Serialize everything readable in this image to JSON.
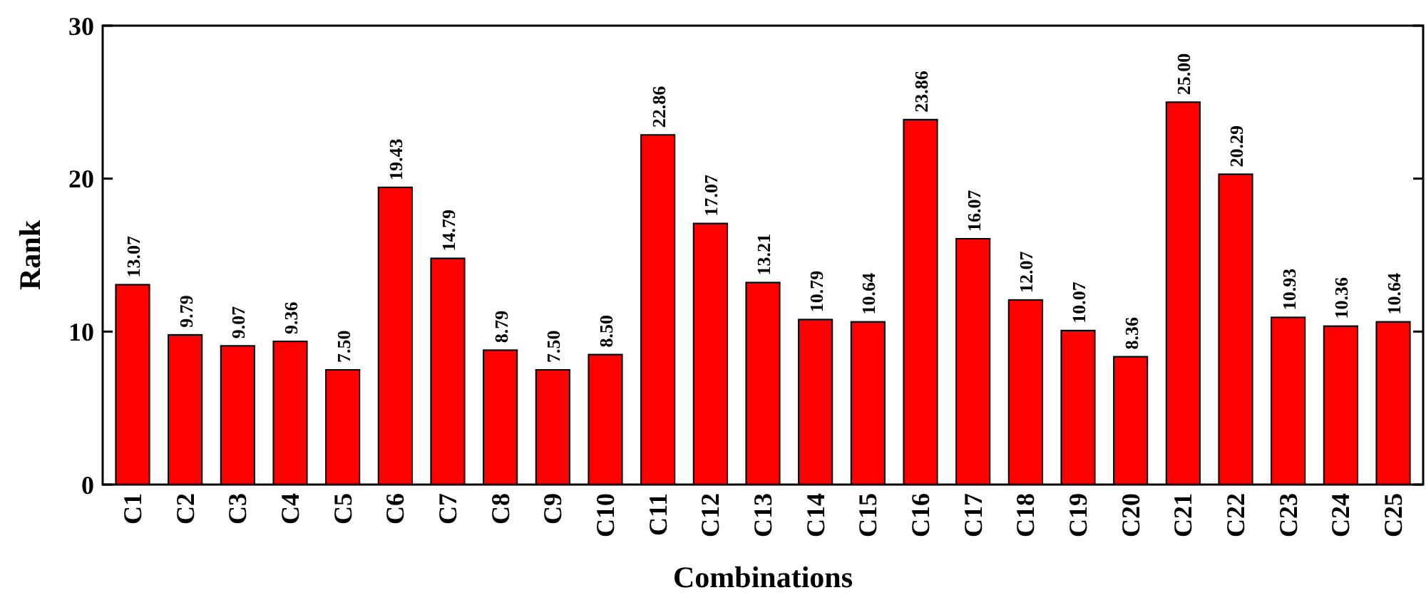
{
  "chart_data": {
    "type": "bar",
    "xlabel": "Combinations",
    "ylabel": "Rank",
    "categories": [
      "C1",
      "C2",
      "C3",
      "C4",
      "C5",
      "C6",
      "C7",
      "C8",
      "C9",
      "C10",
      "C11",
      "C12",
      "C13",
      "C14",
      "C15",
      "C16",
      "C17",
      "C18",
      "C19",
      "C20",
      "C21",
      "C22",
      "C23",
      "C24",
      "C25"
    ],
    "values": [
      13.07,
      9.79,
      9.07,
      9.36,
      7.5,
      19.43,
      14.79,
      8.79,
      7.5,
      8.5,
      22.86,
      17.07,
      13.21,
      10.79,
      10.64,
      23.86,
      16.07,
      12.07,
      10.07,
      8.36,
      25.0,
      20.29,
      10.93,
      10.36,
      10.64
    ],
    "value_labels": [
      "13.07",
      "9.79",
      "9.07",
      "9.36",
      "7.50",
      "19.43",
      "14.79",
      "8.79",
      "7.50",
      "8.50",
      "22.86",
      "17.07",
      "13.21",
      "10.79",
      "10.64",
      "23.86",
      "16.07",
      "12.07",
      "10.07",
      "8.36",
      "25.00",
      "20.29",
      "10.93",
      "10.36",
      "10.64"
    ],
    "color": "#ff0000",
    "ylim": [
      0,
      30
    ],
    "yticks": [
      0,
      10,
      20,
      30
    ],
    "grid": false
  }
}
